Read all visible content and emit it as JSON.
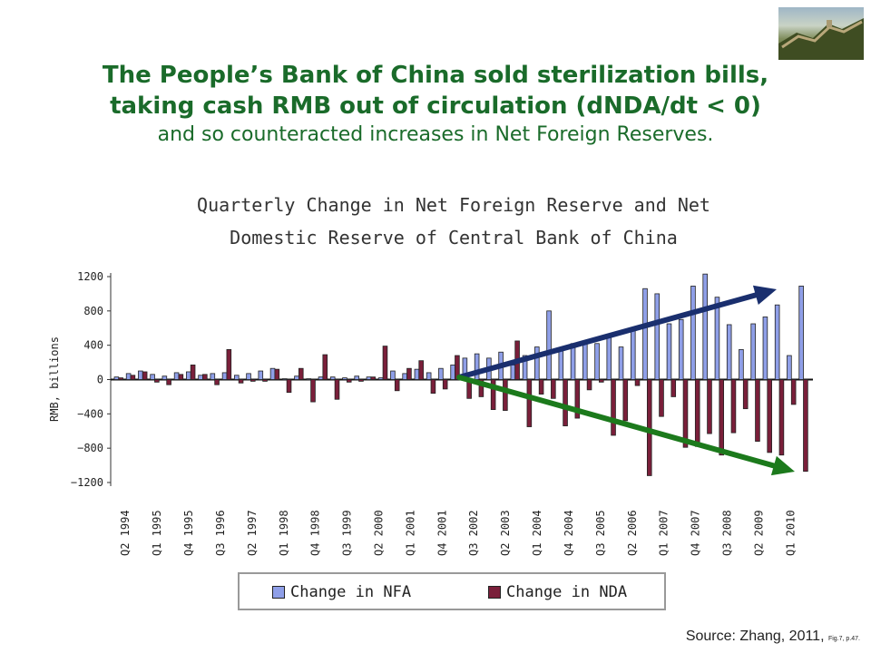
{
  "slide": {
    "title_line1": "The People’s Bank of China sold sterilization bills,",
    "title_line2": "taking cash RMB out of circulation (dNDA/dt < 0)",
    "title_line3": "and so counteracted increases in Net Foreign Reserves.",
    "source_main": "Source:  Zhang, 2011, ",
    "source_small": "Fig.7, p.47."
  },
  "colors": {
    "title": "#1a6b2a",
    "nfa": "#8f9fe8",
    "nda": "#7a1f3a",
    "arrow_up": "#1a2f6e",
    "arrow_down": "#1c7a1c"
  },
  "chart_data": {
    "type": "bar",
    "title_line1": "Quarterly Change in Net Foreign Reserve and Net",
    "title_line2": "Domestic Reserve of Central Bank of China",
    "ylabel": "RMB, billions",
    "ylim": [
      -1200,
      1200
    ],
    "yticks": [
      1200,
      800,
      400,
      0,
      -400,
      -800,
      -1200
    ],
    "tick_labels": [
      "Q2 1994",
      "Q1 1995",
      "Q4 1995",
      "Q3 1996",
      "Q2 1997",
      "Q1 1998",
      "Q4 1998",
      "Q3 1999",
      "Q2 2000",
      "Q1 2001",
      "Q4 2001",
      "Q3 2002",
      "Q2 2003",
      "Q1 2004",
      "Q4 2004",
      "Q3 2005",
      "Q2 2006",
      "Q1 2007",
      "Q4 2007",
      "Q3 2008",
      "Q2 2009",
      "Q1 2010"
    ],
    "legend": [
      "Change in NFA",
      "Change in NDA"
    ],
    "legend_placement": "bottom",
    "series": [
      {
        "name": "Change in NFA",
        "values": [
          30,
          70,
          100,
          60,
          40,
          80,
          90,
          50,
          70,
          80,
          50,
          70,
          100,
          130,
          10,
          40,
          10,
          30,
          30,
          20,
          40,
          30,
          20,
          100,
          70,
          120,
          80,
          130,
          170,
          250,
          300,
          250,
          320,
          170,
          280,
          380,
          800,
          350,
          420,
          450,
          420,
          500,
          380,
          580,
          1060,
          1000,
          650,
          700,
          1090,
          1230,
          960,
          640,
          350,
          650,
          730,
          870,
          280,
          1090
        ]
      },
      {
        "name": "Change in NDA",
        "values": [
          20,
          50,
          90,
          -30,
          -60,
          60,
          170,
          60,
          -60,
          350,
          -40,
          -20,
          -20,
          120,
          -150,
          130,
          -260,
          290,
          -230,
          -30,
          -20,
          30,
          390,
          -130,
          130,
          220,
          -160,
          -110,
          280,
          -220,
          -200,
          -350,
          -360,
          450,
          -550,
          -170,
          -220,
          -540,
          -450,
          -120,
          -30,
          -650,
          -480,
          -70,
          -1120,
          -430,
          -200,
          -790,
          -780,
          -630,
          -880,
          -620,
          -340,
          -720,
          -850,
          -880,
          -290,
          -1070
        ]
      }
    ],
    "annotations": [
      "upward arrow over NFA bars from Q3 2002",
      "downward arrow under NDA bars from Q3 2002"
    ]
  }
}
